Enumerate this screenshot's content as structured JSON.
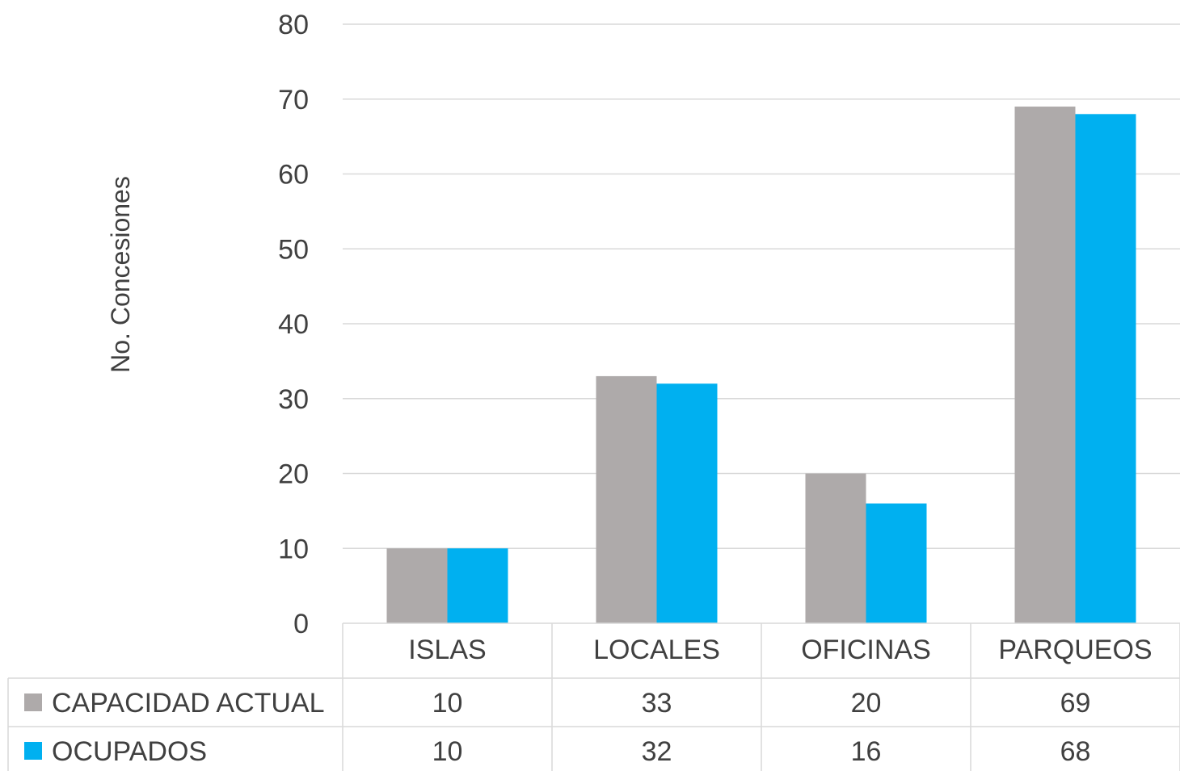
{
  "chart_data": {
    "type": "bar",
    "title": "",
    "xlabel": "",
    "ylabel": "No. Concesiones",
    "ylim": [
      0,
      80
    ],
    "yticks": [
      0,
      10,
      20,
      30,
      40,
      50,
      60,
      70,
      80
    ],
    "categories": [
      "ISLAS",
      "LOCALES",
      "OFICINAS",
      "PARQUEOS"
    ],
    "series": [
      {
        "name": "CAPACIDAD ACTUAL",
        "color": "#aeaaaa",
        "values": [
          10,
          33,
          20,
          69
        ]
      },
      {
        "name": "OCUPADOS",
        "color": "#00b0f0",
        "values": [
          10,
          32,
          16,
          68
        ]
      }
    ],
    "grid": true,
    "legend": "data-table-below"
  }
}
